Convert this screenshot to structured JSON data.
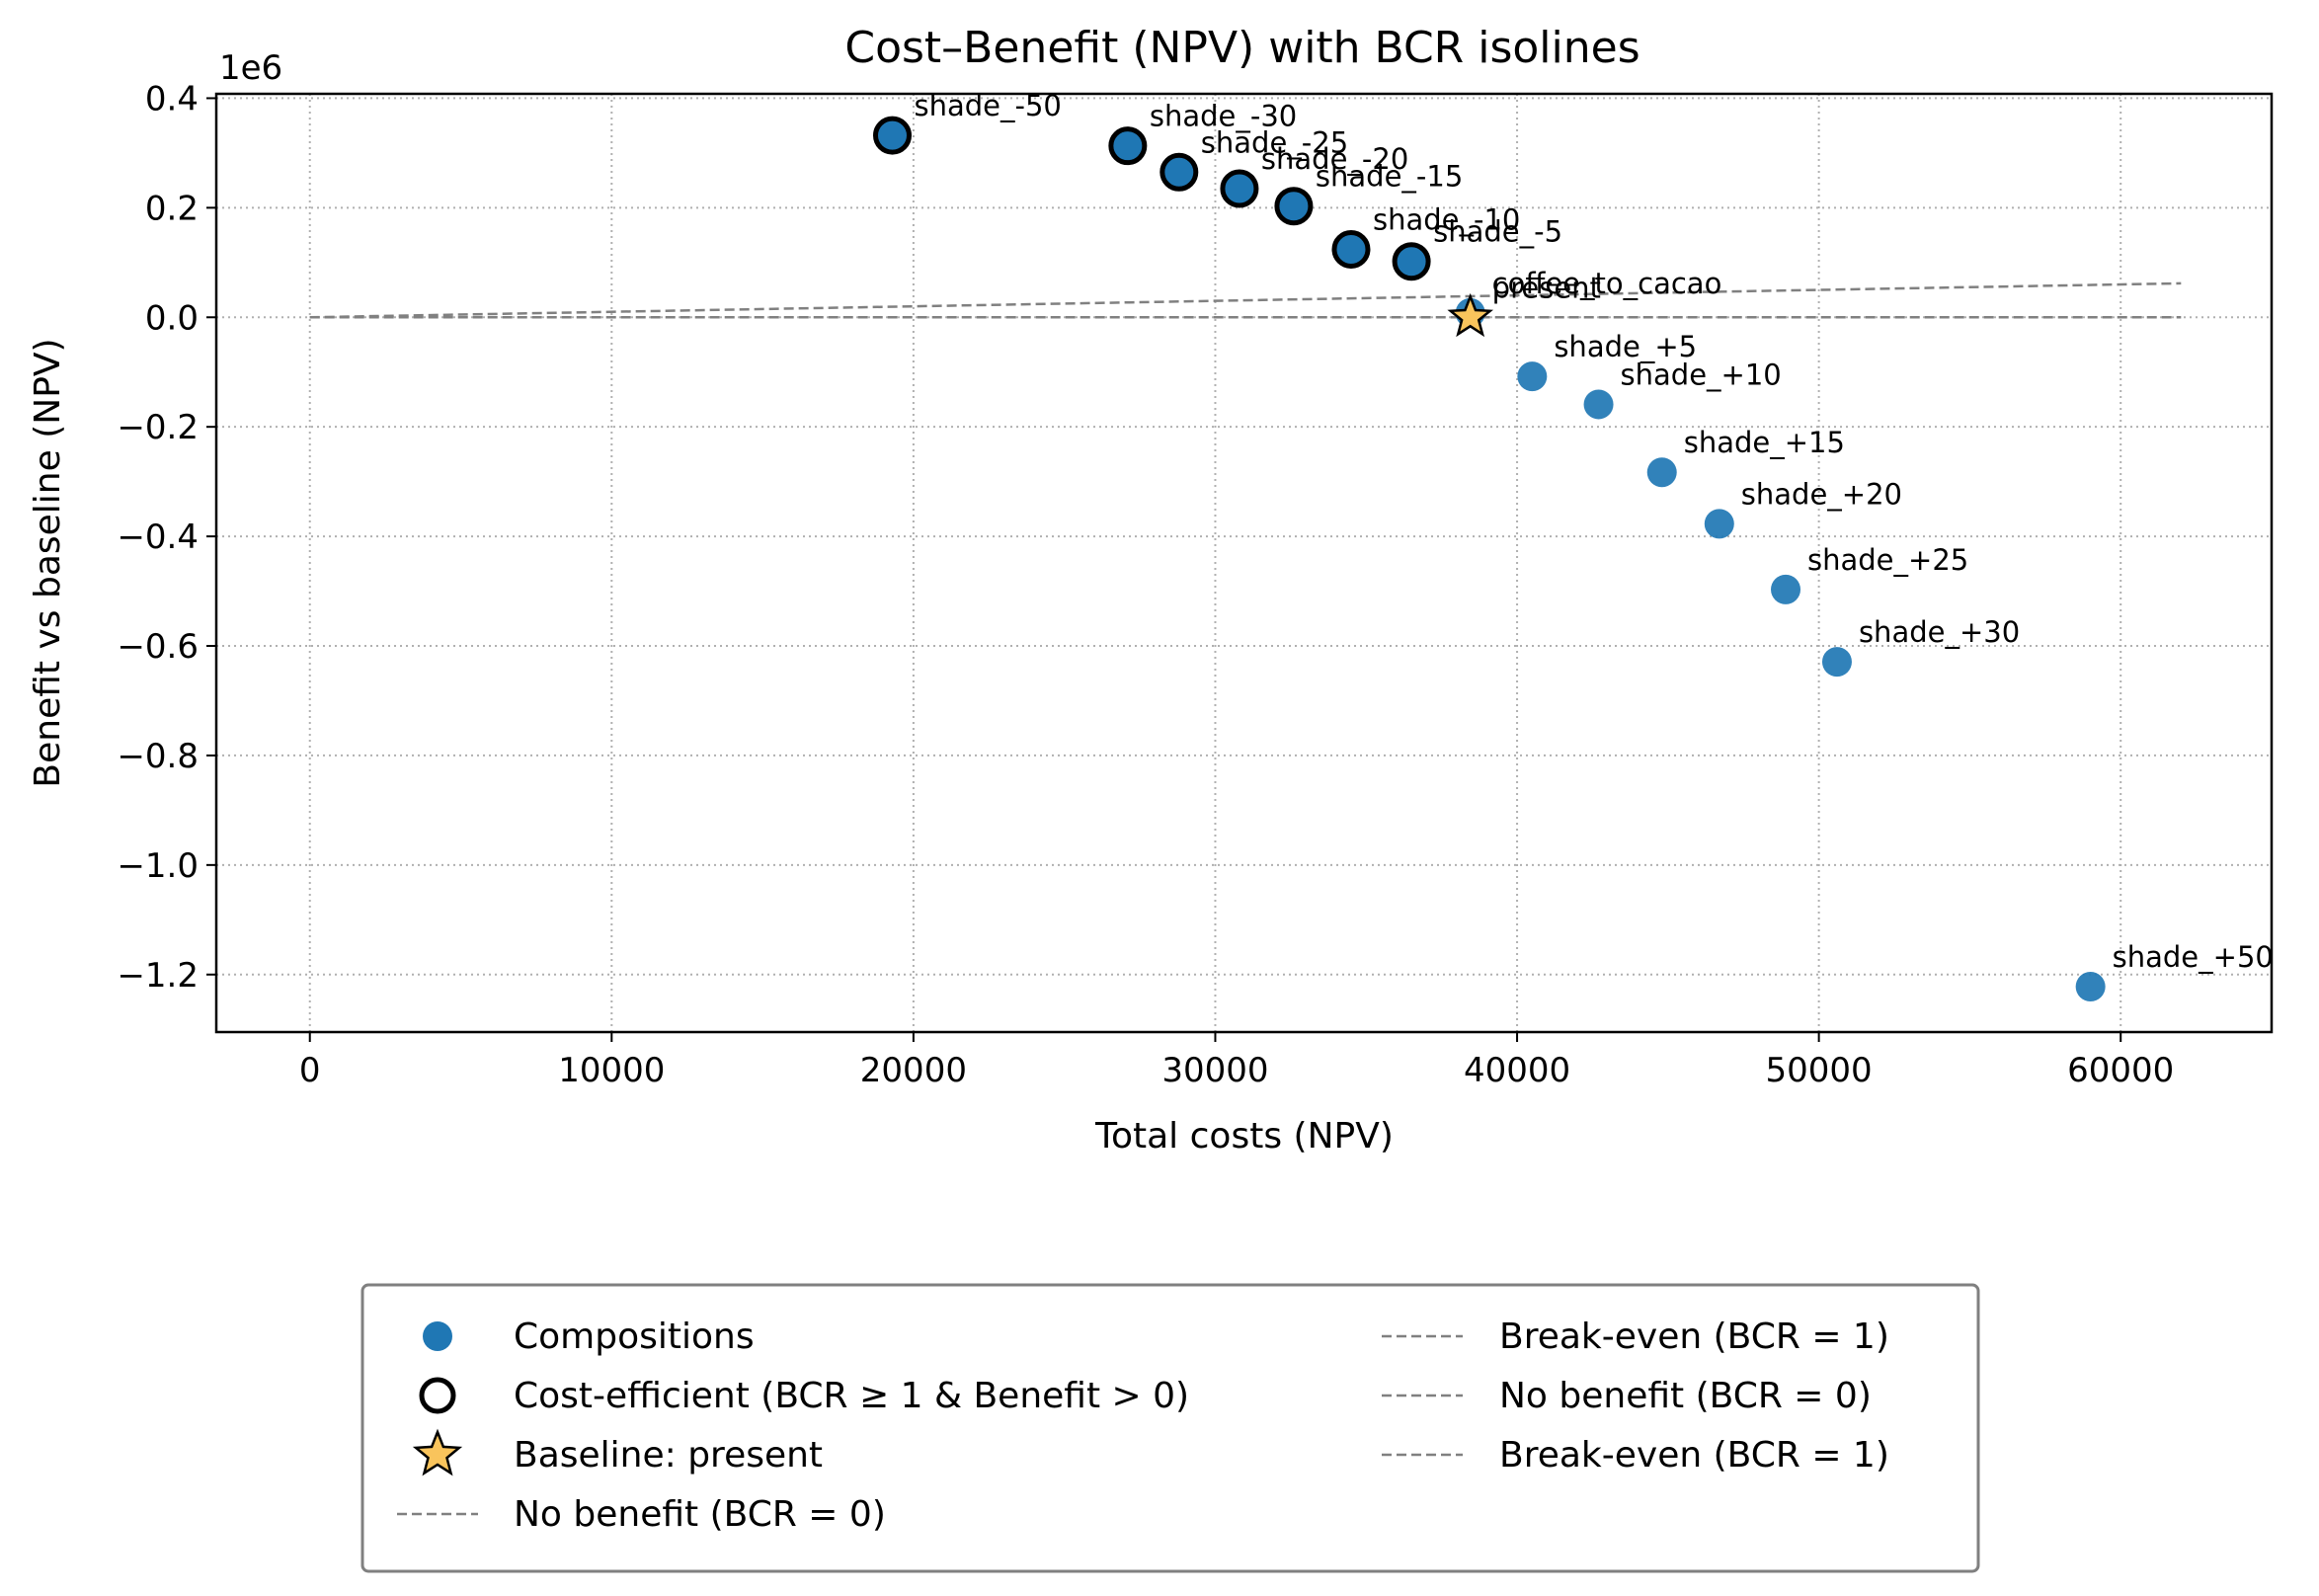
{
  "chart_data": {
    "type": "scatter",
    "title": "Cost–Benefit (NPV) with BCR isolines",
    "xlabel": "Total costs (NPV)",
    "ylabel": "Benefit vs baseline (NPV)",
    "y_offset_label": "1e6",
    "xlim": [
      -3100,
      65000
    ],
    "ylim": [
      -1.305,
      0.408
    ],
    "x_ticks": [
      0,
      10000,
      20000,
      30000,
      40000,
      50000,
      60000
    ],
    "y_ticks": [
      0.4,
      0.2,
      0.0,
      -0.2,
      -0.4,
      -0.6,
      -0.8,
      -1.0,
      -1.2
    ],
    "x_tick_labels": [
      "0",
      "10000",
      "20000",
      "30000",
      "40000",
      "50000",
      "60000"
    ],
    "y_tick_labels": [
      "0.4",
      "0.2",
      "0.0",
      "−0.2",
      "−0.4",
      "−0.6",
      "−0.8",
      "−1.0",
      "−1.2"
    ],
    "grid": true,
    "legend_placement": "below plot",
    "colors": {
      "points": "#1f77b4",
      "point_edge_efficient": "#000000",
      "baseline_star": "#f9c45c",
      "isoline": "#808080"
    },
    "points": [
      {
        "label": "shade_-50",
        "x": 19300,
        "y": 0.332,
        "efficient": true
      },
      {
        "label": "shade_-30",
        "x": 27100,
        "y": 0.313,
        "efficient": true
      },
      {
        "label": "shade_-25",
        "x": 28800,
        "y": 0.265,
        "efficient": true
      },
      {
        "label": "shade_-20",
        "x": 30800,
        "y": 0.235,
        "efficient": true
      },
      {
        "label": "shade_-15",
        "x": 32600,
        "y": 0.203,
        "efficient": true
      },
      {
        "label": "shade_-10",
        "x": 34500,
        "y": 0.124,
        "efficient": true
      },
      {
        "label": "shade_-5",
        "x": 36500,
        "y": 0.102,
        "efficient": true
      },
      {
        "label": "coffee_to_cacao",
        "x": 38450,
        "y": 0.008,
        "efficient": false
      },
      {
        "label": "present",
        "x": 38450,
        "y": 0.0,
        "efficient": false
      },
      {
        "label": "shade_+5",
        "x": 40500,
        "y": -0.108,
        "efficient": false
      },
      {
        "label": "shade_+10",
        "x": 42700,
        "y": -0.159,
        "efficient": false
      },
      {
        "label": "shade_+15",
        "x": 44800,
        "y": -0.283,
        "efficient": false
      },
      {
        "label": "shade_+20",
        "x": 46700,
        "y": -0.377,
        "efficient": false
      },
      {
        "label": "shade_+25",
        "x": 48900,
        "y": -0.497,
        "efficient": false
      },
      {
        "label": "shade_+30",
        "x": 50600,
        "y": -0.629,
        "efficient": false
      },
      {
        "label": "shade_+50",
        "x": 59000,
        "y": -1.222,
        "efficient": false
      }
    ],
    "baseline": {
      "label": "present",
      "x": 38450,
      "y": 0.0
    },
    "isolines": [
      {
        "name": "Break-even (BCR = 1)",
        "bcr": 1,
        "x_range": [
          0,
          62000
        ]
      },
      {
        "name": "No benefit (BCR = 0)",
        "bcr": 0,
        "x_range": [
          0,
          62000
        ]
      }
    ],
    "legend": {
      "left": [
        {
          "marker": "dot",
          "label": "Compositions"
        },
        {
          "marker": "ring",
          "label": "Cost-efficient (BCR ≥ 1 & Benefit > 0)"
        },
        {
          "marker": "star",
          "label": "Baseline: present"
        },
        {
          "marker": "dash",
          "label": "No benefit (BCR = 0)"
        }
      ],
      "right": [
        {
          "marker": "dash",
          "label": "Break-even (BCR = 1)"
        },
        {
          "marker": "dash",
          "label": "No benefit (BCR = 0)"
        },
        {
          "marker": "dash",
          "label": "Break-even (BCR = 1)"
        }
      ]
    }
  }
}
